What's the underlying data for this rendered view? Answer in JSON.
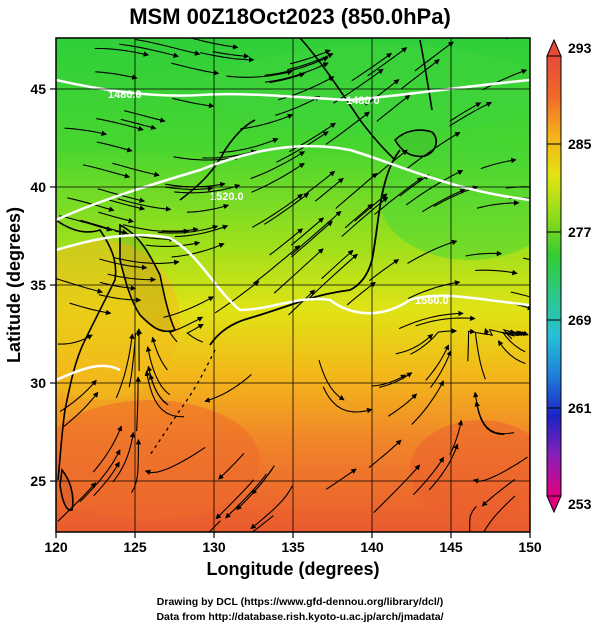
{
  "chart_data": {
    "type": "heatmap",
    "title": "MSM 00Z18Oct2023 (850.0hPa)",
    "xlabel": "Longitude (degrees)",
    "ylabel": "Latitude  (degrees)",
    "xlim": [
      120,
      150
    ],
    "ylim": [
      22.4,
      47.6
    ],
    "x_ticks": [
      "120",
      "125",
      "130",
      "135",
      "140",
      "145",
      "150"
    ],
    "y_ticks": [
      "25",
      "30",
      "35",
      "40",
      "45"
    ],
    "grid": true,
    "colorbar": {
      "ticks": [
        "293",
        "285",
        "277",
        "269",
        "261",
        "253"
      ],
      "min": 253,
      "max": 293,
      "colors": [
        "#e0007f",
        "#8a1fb8",
        "#1c22c4",
        "#1f7fd8",
        "#27c0d8",
        "#2cc88a",
        "#33cc33",
        "#8fdc1a",
        "#e2e414",
        "#f6b21a",
        "#f06a2a",
        "#e54a3a"
      ]
    },
    "contour_labels": [
      "1480.0",
      "1480.0",
      "1520.0",
      "1560.0"
    ]
  },
  "credits": {
    "line1": "Drawing by DCL (https://www.gfd-dennou.org/library/dcl/)",
    "line2": "Data from http://database.rish.kyoto-u.ac.jp/arch/jmadata/"
  }
}
